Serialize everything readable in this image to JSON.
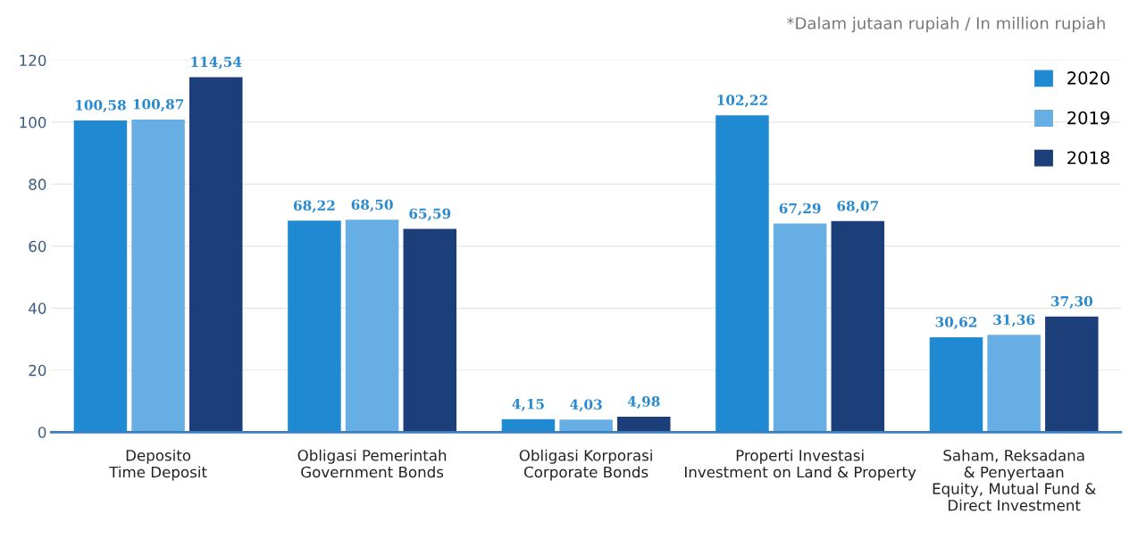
{
  "chart_data": {
    "type": "bar",
    "categories": [
      "Deposito\nTime Deposit",
      "Obligasi Pemerintah\nGovernment Bonds",
      "Obligasi Korporasi\nCorporate Bonds",
      "Properti Investasi\nInvestment on Land & Property",
      "Saham, Reksadana\n& Penyertaan\nEquity, Mutual Fund &\nDirect Investment"
    ],
    "series": [
      {
        "name": "2020",
        "color": "#1f8ad2",
        "values": [
          100.58,
          68.22,
          4.15,
          102.22,
          30.62
        ],
        "value_labels": [
          "100,58",
          "68,22",
          "4,15",
          "102,22",
          "30,62"
        ]
      },
      {
        "name": "2019",
        "color": "#66aee4",
        "values": [
          100.87,
          68.5,
          4.03,
          67.29,
          31.36
        ],
        "value_labels": [
          "100,87",
          "68,50",
          "4,03",
          "67,29",
          "31,36"
        ]
      },
      {
        "name": "2018",
        "color": "#1c3f7a",
        "values": [
          114.54,
          65.59,
          4.98,
          68.07,
          37.3
        ],
        "value_labels": [
          "114,54",
          "65,59",
          "4,98",
          "68,07",
          "37,30"
        ]
      }
    ],
    "ylim": [
      0,
      120
    ],
    "yticks": [
      0,
      20,
      40,
      60,
      80,
      100,
      120
    ],
    "grid": "y",
    "legend": "top right",
    "annotations": [
      "*Dalam jutaan rupiah / In million rupiah"
    ]
  }
}
